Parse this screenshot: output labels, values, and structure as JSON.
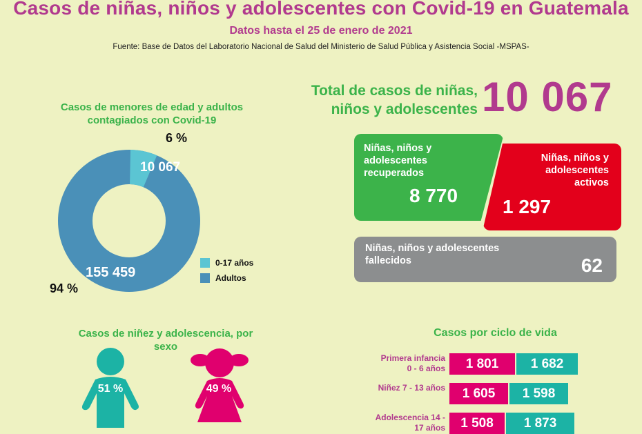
{
  "header": {
    "title": "Casos de niñas, niños y adolescentes con Covid-19 en Guatemala",
    "subtitle": "Datos hasta el 25 de enero de 2021",
    "source": "Fuente: Base de Datos del Laboratorio Nacional de Salud del Ministerio de Salud Pública y Asistencia Social -MSPAS-"
  },
  "colors": {
    "magenta": "#b13a8e",
    "green": "#3bb34a",
    "red": "#e3001b",
    "gray": "#8c8e8f",
    "light_blue": "#5bc5d3",
    "steel_blue": "#4a90b8",
    "teal": "#1cb3a5",
    "pink": "#e0006e"
  },
  "donut": {
    "title": "Casos de menores de edad y adultos contagiados con Covid-19",
    "kids_pct_label": "6 %",
    "adults_pct_label": "94 %",
    "kids_value_label": "10 067",
    "adults_value_label": "155 459",
    "legend": [
      "0-17 años",
      "Adultos"
    ]
  },
  "total": {
    "label": "Total de casos de niñas, niños y adolescentes",
    "value": "10 067"
  },
  "cards": {
    "recovered": {
      "label": "Niñas, niños y adolescentes recuperados",
      "value": "8 770"
    },
    "active": {
      "label": "Niñas, niños y adolescentes activos",
      "value": "1 297"
    },
    "deceased": {
      "label": "Niñas, niños y adolescentes fallecidos",
      "value": "62"
    }
  },
  "sexo": {
    "title": "Casos de niñez y adolescencia, por sexo",
    "boys_pct": "51 %",
    "girls_pct": "49 %",
    "boys_value": 51,
    "girls_value": 49
  },
  "ciclo": {
    "title": "Casos por ciclo de vida",
    "rows": [
      {
        "label": "Primera infancia 0 - 6 años",
        "girls": "1 801",
        "boys": "1 682"
      },
      {
        "label": "Niñez 7 - 13 años",
        "girls": "1 605",
        "boys": "1 598"
      },
      {
        "label": "Adolescencia 14 - 17 años",
        "girls": "1 508",
        "boys": "1 873"
      }
    ]
  },
  "chart_data": [
    {
      "type": "pie",
      "title": "Casos de menores de edad y adultos contagiados con Covid-19",
      "categories": [
        "0-17 años",
        "Adultos"
      ],
      "values": [
        10067,
        155459
      ],
      "percent_labels": [
        "6 %",
        "94 %"
      ],
      "legend": "right"
    },
    {
      "type": "bar",
      "title": "Casos por ciclo de vida",
      "categories": [
        "Primera infancia 0 - 6 años",
        "Niñez 7 - 13 años",
        "Adolescencia 14 - 17 años"
      ],
      "series": [
        {
          "values": [
            1801,
            1605,
            1508
          ]
        },
        {
          "values": [
            1682,
            1598,
            1873
          ]
        }
      ],
      "stacked": true,
      "orientation": "horizontal"
    }
  ]
}
